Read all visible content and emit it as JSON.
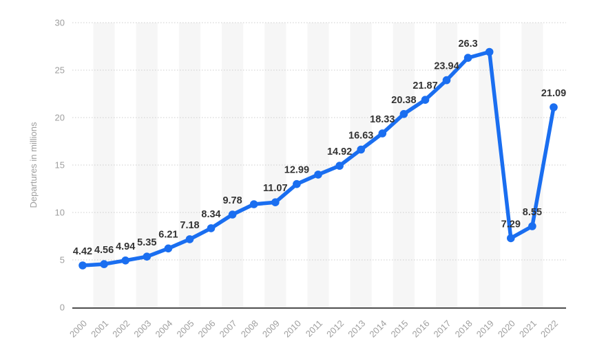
{
  "chart_data": {
    "type": "line",
    "title": "",
    "xlabel": "",
    "ylabel": "Departures in millions",
    "x": [
      "2000",
      "2001",
      "2002",
      "2003",
      "2004",
      "2005",
      "2006",
      "2007",
      "2008",
      "2009",
      "2010",
      "2011",
      "2012",
      "2013",
      "2014",
      "2015",
      "2016",
      "2017",
      "2018",
      "2019",
      "2020",
      "2021",
      "2022"
    ],
    "series": [
      {
        "name": "Departures in millions",
        "values": [
          4.42,
          4.56,
          4.94,
          5.35,
          6.21,
          7.18,
          8.34,
          9.78,
          10.87,
          11.07,
          12.99,
          13.99,
          14.92,
          16.63,
          18.33,
          20.38,
          21.87,
          23.94,
          26.3,
          26.92,
          7.29,
          8.55,
          21.09
        ]
      }
    ],
    "point_labels": [
      "4.42",
      "4.56",
      "4.94",
      "5.35",
      "6.21",
      "7.18",
      "8.34",
      "9.78",
      "",
      "11.07",
      "12.99",
      "",
      "14.92",
      "16.63",
      "18.33",
      "20.38",
      "21.87",
      "23.94",
      "26.3",
      "",
      "7.29",
      "8.55",
      "21.09"
    ],
    "ylim": [
      0,
      30
    ],
    "yticks": [
      0,
      5,
      10,
      15,
      20,
      25,
      30
    ],
    "grid": "horizontal-dotted",
    "legend": "none",
    "background_bands": "alternating vertical stripes on odd years",
    "colors": {
      "line": "#1a6ef0",
      "point": "#1a6ef0",
      "point_label": "#333333",
      "axis_text": "#9e9e9e",
      "gridline": "#cccccc",
      "axis_line": "#4d4d4d",
      "band": "#f6f6f6",
      "background": "#ffffff"
    }
  }
}
